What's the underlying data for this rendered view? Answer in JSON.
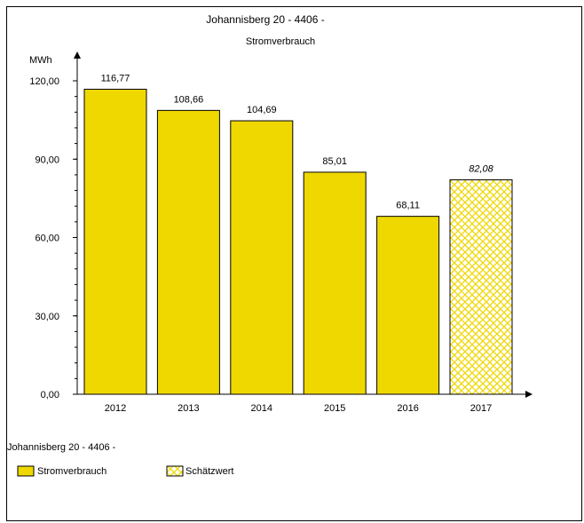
{
  "colors": {
    "bar_fill": "#efd800",
    "bar_stroke": "#000000",
    "estimate_fill": "#ffffff",
    "estimate_pattern": "#efd800",
    "axis": "#000000",
    "background": "#ffffff"
  },
  "chart_data": {
    "type": "bar",
    "title": "Johannisberg 20 - 4406 -",
    "subtitle": "Stromverbrauch",
    "ylabel": "MWh",
    "ylim": [
      0,
      120
    ],
    "yticks": [
      "0,00",
      "30,00",
      "60,00",
      "90,00",
      "120,00"
    ],
    "categories": [
      "2012",
      "2013",
      "2014",
      "2015",
      "2016",
      "2017"
    ],
    "values": [
      116.77,
      108.66,
      104.69,
      85.01,
      68.11,
      82.08
    ],
    "value_labels": [
      "116,77",
      "108,66",
      "104,69",
      "85,01",
      "68,11",
      "82,08"
    ],
    "estimated": [
      false,
      false,
      false,
      false,
      false,
      true
    ],
    "grid": false,
    "legend": {
      "placement": "bottom",
      "title": "Johannisberg 20 - 4406 -",
      "items": [
        {
          "label": "Stromverbrauch",
          "style": "solid"
        },
        {
          "label": "Schätzwert",
          "style": "hatched"
        }
      ]
    }
  }
}
